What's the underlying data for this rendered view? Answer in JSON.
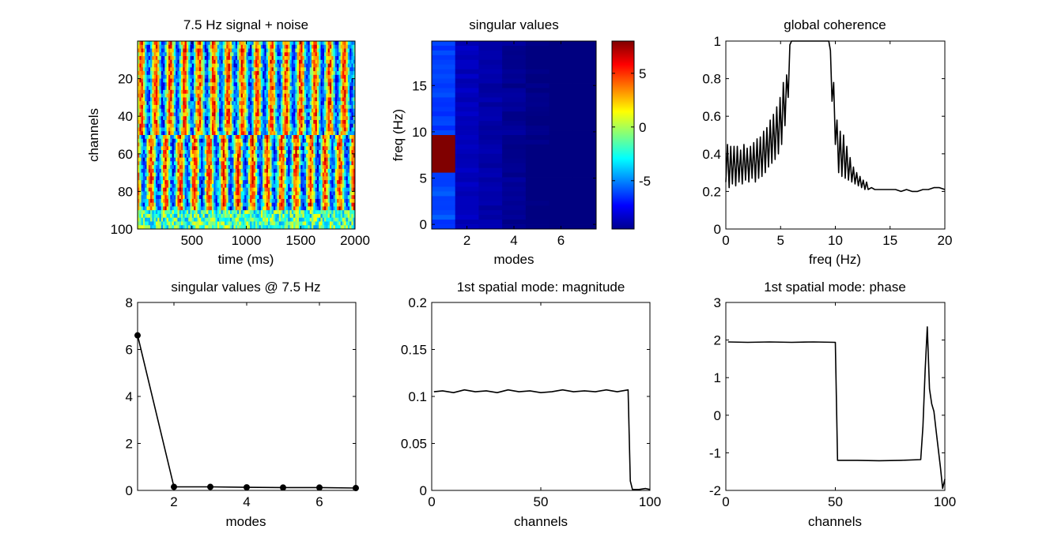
{
  "chart_data": [
    {
      "type": "heatmap",
      "title": "7.5 Hz signal + noise",
      "xlabel": "time (ms)",
      "ylabel": "channels",
      "xlim": [
        0,
        2000
      ],
      "ylim": [
        0,
        100
      ],
      "y_reversed": true,
      "xticks": [
        500,
        1000,
        1500,
        2000
      ],
      "yticks": [
        20,
        40,
        60,
        80,
        100
      ],
      "colormap": "jet",
      "description_values": {
        "signal_frequency_hz": 7.5,
        "channel_groups": [
          {
            "channels": [
              1,
              50
            ],
            "content": "7.5 Hz oscillation"
          },
          {
            "channels": [
              51,
              90
            ],
            "content": "7.5 Hz oscillation, shifted phase"
          },
          {
            "channels": [
              91,
              100
            ],
            "content": "noise"
          }
        ]
      }
    },
    {
      "type": "heatmap",
      "title": "singular values",
      "xlabel": "modes",
      "ylabel": "freq (Hz)",
      "xlim": [
        0.5,
        7.5
      ],
      "ylim": [
        -0.5,
        19.8
      ],
      "xticks": [
        2,
        4,
        6
      ],
      "yticks": [
        0,
        5,
        10,
        15
      ],
      "colormap": "jet",
      "colorbar": {
        "min": -9.5,
        "max": 8,
        "ticks": [
          5,
          0,
          -5
        ]
      },
      "peak": {
        "mode": 1,
        "freq_range": [
          5.5,
          9.5
        ],
        "value": 8
      }
    },
    {
      "type": "line",
      "title": "global coherence",
      "xlabel": "freq (Hz)",
      "ylabel": "",
      "xlim": [
        0,
        20
      ],
      "ylim": [
        0,
        1
      ],
      "xticks": [
        0,
        5,
        10,
        15,
        20
      ],
      "yticks": [
        0,
        0.2,
        0.4,
        0.6,
        0.8,
        1
      ],
      "series": [
        {
          "x": [
            0,
            0.15,
            0.3,
            0.45,
            0.6,
            0.75,
            0.9,
            1.05,
            1.2,
            1.35,
            1.5,
            1.65,
            1.8,
            1.95,
            2.1,
            2.25,
            2.4,
            2.55,
            2.7,
            2.85,
            3.0,
            3.15,
            3.3,
            3.45,
            3.6,
            3.75,
            3.9,
            4.05,
            4.2,
            4.35,
            4.5,
            4.65,
            4.8,
            4.95,
            5.1,
            5.25,
            5.4,
            5.55,
            5.7,
            5.85,
            6.0,
            7.0,
            8.0,
            9.0,
            9.4,
            9.55,
            9.7,
            9.85,
            10.0,
            10.15,
            10.3,
            10.45,
            10.6,
            10.75,
            10.9,
            11.05,
            11.2,
            11.35,
            11.5,
            11.65,
            11.8,
            11.95,
            12.1,
            12.25,
            12.4,
            12.55,
            12.7,
            12.85,
            13.0,
            13.3,
            13.6,
            14.0,
            14.5,
            15.0,
            15.5,
            16.0,
            16.5,
            17.0,
            17.5,
            18.0,
            18.5,
            19.0,
            19.5,
            20.0
          ],
          "y": [
            0.25,
            0.45,
            0.22,
            0.44,
            0.24,
            0.44,
            0.23,
            0.44,
            0.25,
            0.42,
            0.24,
            0.45,
            0.26,
            0.43,
            0.25,
            0.44,
            0.27,
            0.46,
            0.25,
            0.48,
            0.27,
            0.49,
            0.28,
            0.52,
            0.3,
            0.54,
            0.33,
            0.58,
            0.35,
            0.61,
            0.37,
            0.65,
            0.4,
            0.7,
            0.45,
            0.78,
            0.55,
            0.82,
            0.7,
            0.98,
            1.0,
            1.0,
            1.0,
            1.0,
            1.0,
            0.95,
            0.68,
            0.78,
            0.45,
            0.58,
            0.3,
            0.52,
            0.28,
            0.5,
            0.27,
            0.44,
            0.26,
            0.38,
            0.25,
            0.33,
            0.24,
            0.3,
            0.23,
            0.28,
            0.22,
            0.26,
            0.21,
            0.25,
            0.21,
            0.22,
            0.21,
            0.21,
            0.21,
            0.21,
            0.21,
            0.2,
            0.21,
            0.2,
            0.2,
            0.21,
            0.21,
            0.22,
            0.22,
            0.21
          ]
        }
      ]
    },
    {
      "type": "line",
      "title": "singular values @ 7.5 Hz",
      "xlabel": "modes",
      "ylabel": "",
      "xlim": [
        1,
        7
      ],
      "ylim": [
        0,
        8
      ],
      "xticks": [
        2,
        4,
        6
      ],
      "yticks": [
        0,
        2,
        4,
        6,
        8
      ],
      "markers": true,
      "series": [
        {
          "x": [
            1,
            2,
            3,
            4,
            5,
            6,
            7
          ],
          "y": [
            6.6,
            0.15,
            0.15,
            0.13,
            0.12,
            0.12,
            0.1
          ]
        }
      ]
    },
    {
      "type": "line",
      "title": "1st spatial mode: magnitude",
      "xlabel": "channels",
      "ylabel": "",
      "xlim": [
        0,
        100
      ],
      "ylim": [
        0,
        0.2
      ],
      "xticks": [
        0,
        50,
        100
      ],
      "yticks": [
        0,
        0.05,
        0.1,
        0.15,
        0.2
      ],
      "series": [
        {
          "x": [
            1,
            5,
            10,
            15,
            20,
            25,
            30,
            35,
            40,
            45,
            50,
            55,
            60,
            65,
            70,
            75,
            80,
            85,
            90,
            91,
            92,
            95,
            98,
            100
          ],
          "y": [
            0.105,
            0.106,
            0.104,
            0.107,
            0.105,
            0.106,
            0.104,
            0.107,
            0.105,
            0.106,
            0.104,
            0.105,
            0.107,
            0.105,
            0.106,
            0.105,
            0.107,
            0.105,
            0.107,
            0.01,
            0.001,
            0.001,
            0.002,
            0.001
          ]
        }
      ]
    },
    {
      "type": "line",
      "title": "1st spatial mode: phase",
      "xlabel": "channels",
      "ylabel": "",
      "xlim": [
        0,
        100
      ],
      "ylim": [
        -2,
        3
      ],
      "xticks": [
        0,
        50,
        100
      ],
      "yticks": [
        -2,
        -1,
        0,
        1,
        2,
        3
      ],
      "series": [
        {
          "x": [
            1,
            10,
            20,
            30,
            40,
            50,
            51,
            60,
            70,
            80,
            89,
            90,
            91,
            92,
            93,
            94,
            95,
            96,
            97,
            98,
            99,
            100
          ],
          "y": [
            1.95,
            1.94,
            1.95,
            1.94,
            1.95,
            1.94,
            -1.2,
            -1.2,
            -1.21,
            -1.2,
            -1.18,
            -0.3,
            1.2,
            2.35,
            0.7,
            0.3,
            0.1,
            -0.4,
            -0.9,
            -1.4,
            -1.95,
            -1.7
          ]
        }
      ]
    }
  ]
}
